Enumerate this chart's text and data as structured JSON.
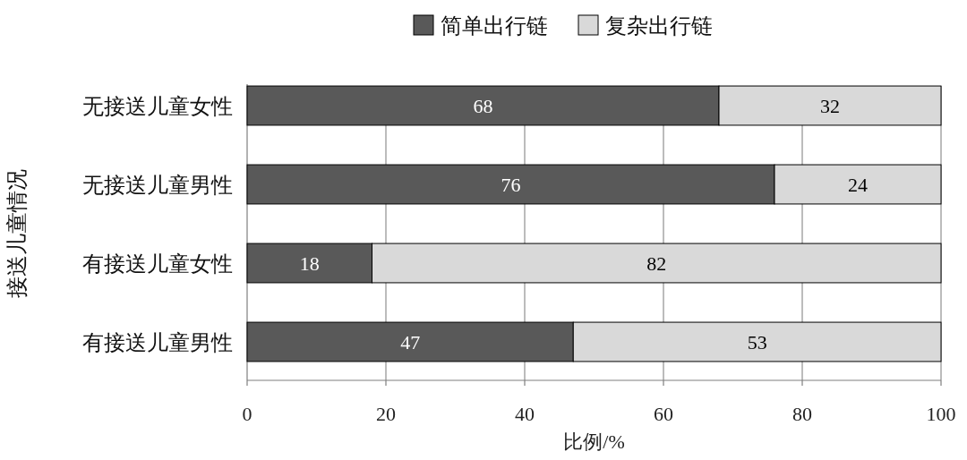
{
  "chart_data": {
    "type": "bar",
    "orientation": "horizontal",
    "stacked": true,
    "data_labels": true,
    "grid": "x",
    "legend": "top",
    "xlabel": "比例/%",
    "ylabel": "接送儿童情况",
    "categories": [
      "无接送儿童女性",
      "无接送儿童男性",
      "有接送儿童女性",
      "有接送儿童男性"
    ],
    "xlim": [
      0,
      100
    ],
    "xticks": [
      0,
      20,
      40,
      60,
      80,
      100
    ],
    "series": [
      {
        "name": "简单出行链",
        "color": "#595959",
        "values": [
          68,
          76,
          18,
          47
        ]
      },
      {
        "name": "复杂出行链",
        "color": "#d9d9d9",
        "values": [
          32,
          24,
          82,
          53
        ]
      }
    ]
  }
}
